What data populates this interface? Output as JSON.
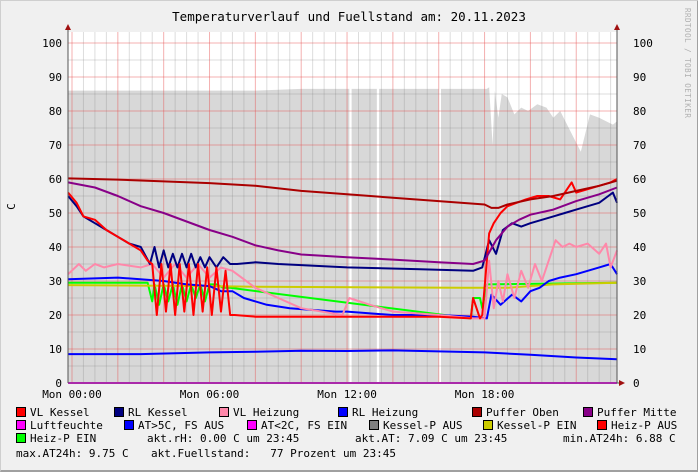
{
  "chart_data": {
    "type": "line",
    "title": "Temperaturverlauf und Fuellstand am: 20.11.2023",
    "ylabel": "C",
    "watermark": "RRDTOOL / TOBI OETIKER",
    "ylim": [
      0,
      103
    ],
    "xlim_hours": [
      -0.17,
      23.78
    ],
    "yticks": [
      0,
      10,
      20,
      30,
      40,
      50,
      60,
      70,
      80,
      90,
      100
    ],
    "xticks": [
      {
        "h": 0,
        "label": "Mon 00:00"
      },
      {
        "h": 6,
        "label": "Mon 06:00"
      },
      {
        "h": 12,
        "label": "Mon 12:00"
      },
      {
        "h": 18,
        "label": "Mon 18:00"
      }
    ],
    "grid": true,
    "area": {
      "name": "Fuellstand",
      "color": "#d8d8d8",
      "segments": [
        {
          "t": [
            -0.17,
            2,
            4,
            6,
            8,
            10,
            12.1
          ],
          "v": [
            86,
            86,
            86,
            86,
            86,
            86.5,
            86.5
          ]
        },
        {
          "t": [
            12.2,
            13.3
          ],
          "v": [
            86.5,
            86.5
          ]
        },
        {
          "t": [
            13.4,
            16.0
          ],
          "v": [
            86.5,
            86.5
          ]
        },
        {
          "t": [
            16.1,
            18.1,
            18.2,
            18.35,
            18.45,
            18.6,
            18.75,
            19.0,
            19.3,
            19.6,
            19.9,
            20.3,
            20.7,
            21.0,
            21.3,
            21.6,
            21.9,
            22.2,
            22.6,
            23.0,
            23.3,
            23.6,
            23.78
          ],
          "v": [
            86.5,
            86.5,
            87,
            70,
            86,
            78,
            85,
            84,
            79,
            81,
            80,
            82,
            81,
            78,
            80,
            76,
            72,
            68,
            79,
            78,
            77,
            76,
            77
          ]
        }
      ]
    },
    "series": [
      {
        "name": "Heiz-P EIN",
        "color": "#00ff00",
        "t": [
          -0.17,
          3.3,
          3.5,
          3.6,
          3.8,
          4.0,
          4.2,
          4.4,
          4.6,
          4.8,
          5.0,
          5.2,
          5.4,
          5.6,
          5.8,
          6.0,
          6.3,
          6.6,
          6.9,
          17.4,
          17.5,
          17.8,
          17.9,
          18.1,
          23.78
        ],
        "v": [
          29.5,
          29.5,
          24,
          29,
          23,
          29,
          24,
          29,
          23,
          29,
          24,
          29,
          25,
          29,
          24,
          29,
          29,
          28,
          28,
          19,
          25,
          25,
          22,
          29,
          29.5
        ]
      },
      {
        "name": "Kessel-P EIN",
        "color": "#cccc00",
        "t": [
          -0.17,
          6,
          8,
          17,
          19,
          21,
          23.78
        ],
        "v": [
          28.8,
          28.5,
          28.3,
          28,
          28,
          29,
          29.5
        ]
      },
      {
        "name": "AT",
        "color": "#0000ff",
        "t": [
          -0.17,
          3,
          6,
          8,
          10,
          12,
          14,
          16,
          18,
          20,
          22,
          23.78
        ],
        "v": [
          8.5,
          8.5,
          9,
          9.2,
          9.5,
          9.4,
          9.6,
          9.3,
          9,
          8.3,
          7.5,
          7
        ]
      },
      {
        "name": "RL Heizung",
        "color": "#0000ff",
        "t": [
          -0.17,
          2,
          4,
          5,
          6,
          6.5,
          7,
          7.5,
          8.5,
          9.5,
          11.5,
          12,
          14,
          16,
          17.5,
          18.1,
          18.3,
          18.7,
          19.2,
          19.6,
          20,
          20.4,
          20.8,
          21.3,
          22,
          22.5,
          23,
          23.5,
          23.78
        ],
        "v": [
          30.5,
          31,
          30,
          29,
          28.5,
          27,
          27,
          25,
          23,
          22,
          21,
          21,
          20,
          20,
          19.5,
          19,
          26,
          23,
          26,
          24,
          27,
          28,
          30,
          31,
          32,
          33,
          34,
          35,
          32
        ]
      },
      {
        "name": "VL Heizung",
        "color": "#ff88aa",
        "t": [
          -0.17,
          0.3,
          0.6,
          1,
          1.4,
          2,
          3,
          3.5,
          4,
          4.5,
          5,
          5.5,
          6,
          6.5,
          7,
          8,
          9,
          10,
          11.8,
          12.1,
          13,
          14,
          16,
          17.5,
          18.0,
          18.2,
          18.4,
          18.6,
          18.8,
          19.0,
          19.3,
          19.6,
          19.9,
          20.2,
          20.5,
          20.8,
          21.1,
          21.4,
          21.7,
          22,
          22.5,
          23,
          23.3,
          23.5,
          23.78
        ],
        "v": [
          32,
          35,
          33,
          35,
          34,
          35,
          34,
          35,
          31,
          35,
          31,
          35,
          31,
          34,
          33,
          28,
          25,
          22,
          20,
          25,
          23,
          21,
          20,
          19,
          19,
          36,
          22,
          30,
          24,
          32,
          25,
          33,
          28,
          35,
          30,
          36,
          42,
          40,
          41,
          40,
          41,
          38,
          41,
          34,
          39
        ]
      },
      {
        "name": "RL Kessel",
        "color": "#000080",
        "t": [
          -0.17,
          0.2,
          0.5,
          1,
          1.5,
          2,
          2.5,
          3,
          3.4,
          3.6,
          3.8,
          4.0,
          4.2,
          4.4,
          4.6,
          4.8,
          5.0,
          5.2,
          5.4,
          5.6,
          5.8,
          6.0,
          6.3,
          6.6,
          6.9,
          7.2,
          8,
          9,
          12,
          15,
          17.5,
          17.9,
          18.2,
          18.5,
          18.8,
          19.2,
          19.6,
          20,
          20.5,
          21,
          21.5,
          22,
          22.5,
          23,
          23.4,
          23.6,
          23.78
        ],
        "v": [
          55,
          52,
          49,
          47,
          45,
          43,
          41,
          40,
          35,
          40,
          34,
          39,
          34,
          38,
          34,
          38,
          34,
          38,
          34,
          37,
          34,
          37,
          34,
          37,
          35,
          35,
          35.5,
          35,
          34,
          33.5,
          33,
          34,
          42,
          38,
          45,
          47,
          46,
          47,
          48,
          49,
          50,
          51,
          52,
          53,
          55,
          56,
          53
        ]
      },
      {
        "name": "VL Kessel",
        "color": "#ff0000",
        "t": [
          -0.17,
          0.2,
          0.5,
          1,
          1.5,
          2,
          2.5,
          3,
          3.3,
          3.5,
          3.7,
          3.9,
          4.1,
          4.3,
          4.5,
          4.7,
          4.9,
          5.1,
          5.3,
          5.5,
          5.7,
          5.9,
          6.1,
          6.3,
          6.5,
          6.7,
          6.9,
          7.1,
          8,
          12,
          16,
          17.4,
          17.5,
          17.8,
          17.9,
          18.2,
          18.4,
          18.7,
          19.0,
          19.4,
          19.8,
          20.3,
          20.8,
          21.3,
          21.8,
          22,
          22.5,
          23,
          23.5,
          23.78
        ],
        "v": [
          56,
          53,
          49,
          48,
          45,
          43,
          41,
          39,
          36,
          35,
          20,
          35,
          21,
          35,
          20,
          35,
          21,
          35,
          20,
          35,
          21,
          34,
          20,
          34,
          21,
          33,
          20,
          20,
          19.5,
          19.5,
          19.5,
          19,
          25,
          19,
          20,
          44,
          47,
          50,
          52,
          53,
          54,
          55,
          55,
          54,
          59,
          56,
          57,
          58,
          59,
          60
        ]
      },
      {
        "name": "Puffer Mitte",
        "color": "#880088",
        "t": [
          -0.17,
          1,
          2,
          3,
          4,
          5,
          6,
          7,
          8,
          9,
          10,
          12,
          14,
          16,
          17.5,
          18,
          18.5,
          19,
          19.5,
          20,
          21,
          22,
          23,
          23.78
        ],
        "v": [
          59,
          57.5,
          55,
          52,
          50,
          47.5,
          45,
          43,
          40.5,
          39,
          37.8,
          37,
          36.3,
          35.5,
          35,
          36,
          42,
          46,
          48,
          49.5,
          51,
          53.5,
          55.5,
          57.5
        ]
      },
      {
        "name": "Puffer Oben",
        "color": "#aa0000",
        "t": [
          -0.17,
          2,
          4,
          6,
          8,
          10,
          12,
          14,
          16,
          18,
          18.3,
          18.6,
          19,
          20,
          21,
          22,
          23,
          23.78
        ],
        "v": [
          60.2,
          59.8,
          59.3,
          58.8,
          58,
          56.5,
          55.5,
          54.5,
          53.5,
          52.5,
          51.5,
          51.5,
          52.5,
          54,
          55,
          56.5,
          58,
          59.5
        ]
      },
      {
        "name": "Luftfeuchte",
        "color": "#ff00ff",
        "t": [
          -0.17,
          23.78
        ],
        "v": [
          0,
          0
        ]
      }
    ],
    "legend": [
      {
        "label": "VL Kessel",
        "color": "#ff0000"
      },
      {
        "label": "RL Kessel",
        "color": "#000080"
      },
      {
        "label": "VL Heizung",
        "color": "#ff88aa"
      },
      {
        "label": "RL Heizung",
        "color": "#0000ff"
      },
      {
        "label": "Puffer Oben",
        "color": "#aa0000"
      },
      {
        "label": "Puffer Mitte",
        "color": "#880088"
      },
      {
        "label": "Luftfeuchte",
        "color": "#ff00ff"
      },
      {
        "label": "AT>5C, FS AUS",
        "color": "#0000ff"
      },
      {
        "label": "AT<2C, FS EIN",
        "color": "#ff00ff"
      },
      {
        "label": "Kessel-P AUS",
        "color": "#808080"
      },
      {
        "label": "Kessel-P EIN",
        "color": "#cccc00"
      },
      {
        "label": "Heiz-P AUS",
        "color": "#ff0000"
      },
      {
        "label": "Heiz-P EIN",
        "color": "#00ff00"
      }
    ],
    "stats": {
      "rh": "akt.rH: 0.00 C um 23:45",
      "at": "akt.AT: 7.09 C um 23:45",
      "min": "min.AT24h: 6.88 C",
      "max": "max.AT24h: 9.75 C",
      "fuell": "akt.Fuellstand:   77 Prozent um 23:45"
    }
  }
}
